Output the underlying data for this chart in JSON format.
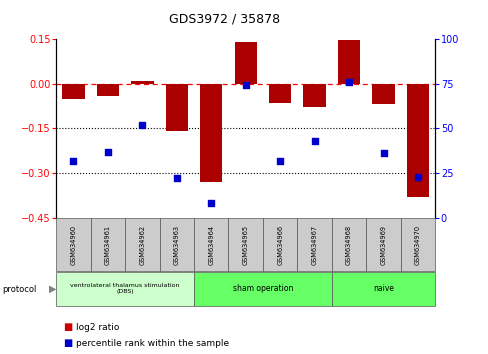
{
  "title": "GDS3972 / 35878",
  "samples": [
    "GSM634960",
    "GSM634961",
    "GSM634962",
    "GSM634963",
    "GSM634964",
    "GSM634965",
    "GSM634966",
    "GSM634967",
    "GSM634968",
    "GSM634969",
    "GSM634970"
  ],
  "log2_ratio": [
    -0.05,
    -0.04,
    0.01,
    -0.16,
    -0.33,
    0.14,
    -0.065,
    -0.08,
    0.145,
    -0.07,
    -0.38
  ],
  "percentile_rank": [
    32,
    37,
    52,
    22,
    8,
    74,
    32,
    43,
    76,
    36,
    23
  ],
  "bar_color": "#aa0000",
  "dot_color": "#0000cc",
  "ylim_left": [
    -0.45,
    0.15
  ],
  "ylim_right": [
    0,
    100
  ],
  "yticks_left": [
    0.15,
    0.0,
    -0.15,
    -0.3,
    -0.45
  ],
  "yticks_right": [
    100,
    75,
    50,
    25,
    0
  ],
  "dotted_lines": [
    -0.15,
    -0.3
  ],
  "dbs_color": "#ccffcc",
  "green_color": "#66ff66",
  "grey_color": "#cccccc",
  "background_color": "#ffffff",
  "title_fontsize": 9
}
